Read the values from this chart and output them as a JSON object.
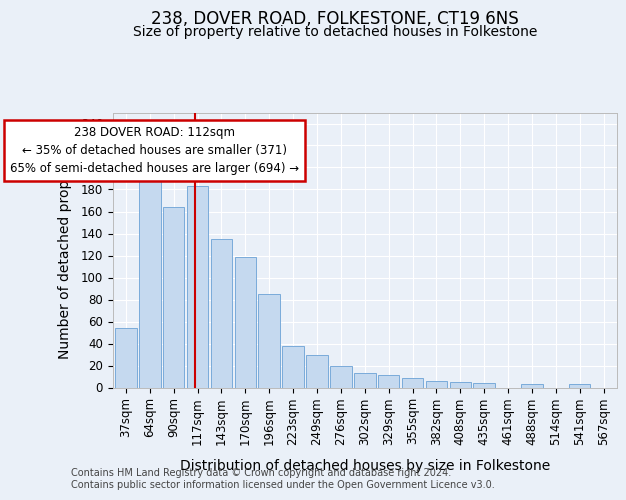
{
  "title1": "238, DOVER ROAD, FOLKESTONE, CT19 6NS",
  "title2": "Size of property relative to detached houses in Folkestone",
  "xlabel": "Distribution of detached houses by size in Folkestone",
  "ylabel": "Number of detached properties",
  "categories": [
    "37sqm",
    "64sqm",
    "90sqm",
    "117sqm",
    "143sqm",
    "170sqm",
    "196sqm",
    "223sqm",
    "249sqm",
    "276sqm",
    "302sqm",
    "329sqm",
    "355sqm",
    "382sqm",
    "408sqm",
    "435sqm",
    "461sqm",
    "488sqm",
    "514sqm",
    "541sqm",
    "567sqm"
  ],
  "values": [
    54,
    200,
    164,
    183,
    135,
    119,
    85,
    38,
    30,
    20,
    13,
    11,
    9,
    6,
    5,
    4,
    0,
    3,
    0,
    3,
    0
  ],
  "bar_color": "#c5d9ef",
  "bar_edge_color": "#7aabda",
  "vline_color": "#cc0000",
  "annotation_text": "238 DOVER ROAD: 112sqm\n← 35% of detached houses are smaller (371)\n65% of semi-detached houses are larger (694) →",
  "annotation_box_color": "#ffffff",
  "annotation_box_edge": "#cc0000",
  "ylim": [
    0,
    250
  ],
  "yticks": [
    0,
    20,
    40,
    60,
    80,
    100,
    120,
    140,
    160,
    180,
    200,
    220,
    240
  ],
  "footer1": "Contains HM Land Registry data © Crown copyright and database right 2024.",
  "footer2": "Contains public sector information licensed under the Open Government Licence v3.0.",
  "bg_color": "#eaf0f8",
  "grid_color": "#ffffff",
  "title1_fontsize": 12,
  "title2_fontsize": 10,
  "axis_label_fontsize": 10,
  "tick_fontsize": 8.5,
  "footer_fontsize": 7
}
